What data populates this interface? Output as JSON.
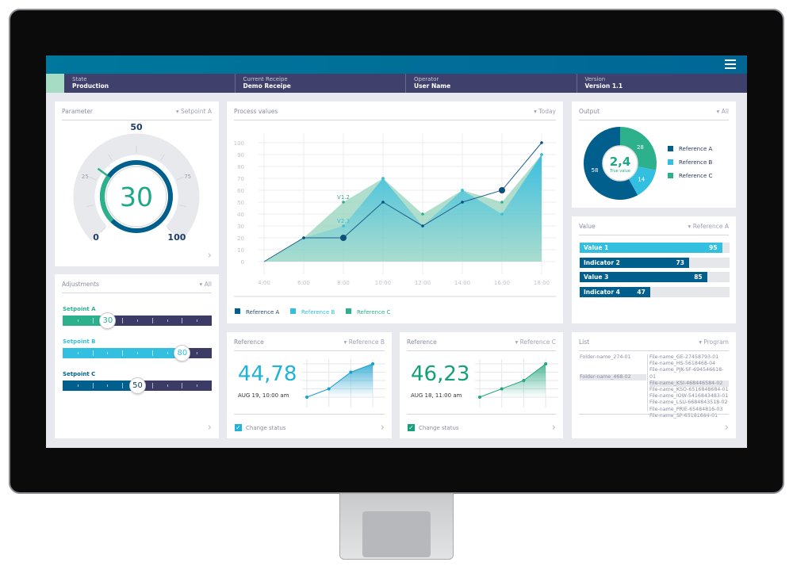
{
  "header": {
    "menu_icon": "hamburger-icon",
    "state": {
      "label": "State",
      "value": "Production"
    },
    "recipe": {
      "label": "Current Receipe",
      "value": "Demo Receipe"
    },
    "operator": {
      "label": "Operator",
      "value": "User Name"
    },
    "version": {
      "label": "Version",
      "value": "Version 1.1"
    }
  },
  "colors": {
    "dark_blue": "#005f8c",
    "light_blue": "#33bfe0",
    "green": "#2db08c",
    "navy": "#3b3b66"
  },
  "parameter": {
    "title": "Parameter",
    "dropdown": "Setpoint A",
    "value": "30",
    "value_num": 30,
    "ticks": [
      "0",
      "25",
      "50",
      "75",
      "100"
    ]
  },
  "adjustments": {
    "title": "Adjustments",
    "dropdown": "All",
    "sliders": [
      {
        "label": "Setpoint A",
        "value": "30",
        "color": "#2db08c"
      },
      {
        "label": "Setpoint B",
        "value": "80",
        "color": "#33bfe0"
      },
      {
        "label": "Setpoint C",
        "value": "50",
        "color": "#005f8c"
      }
    ]
  },
  "process": {
    "title": "Process values",
    "dropdown": "Today"
  },
  "output": {
    "title": "Output",
    "dropdown": "All",
    "center_value": "2,4",
    "center_label": "True value"
  },
  "value_panel": {
    "title": "Value",
    "dropdown": "Reference A",
    "bars": [
      {
        "label": "Value 1",
        "value": "95",
        "color": "#33bfe0"
      },
      {
        "label": "Indicator 2",
        "value": "73",
        "color": "#005f8c"
      },
      {
        "label": "Value 3",
        "value": "85",
        "color": "#005f8c"
      },
      {
        "label": "Indicator 4",
        "value": "47",
        "color": "#005f8c"
      }
    ]
  },
  "refB": {
    "title": "Reference",
    "dropdown": "Reference B",
    "value": "44,78",
    "date": "AUG 19, 10:00 am",
    "checkbox": "Change status",
    "checked": true,
    "levels": [
      0,
      1,
      3,
      4
    ]
  },
  "refC": {
    "title": "Reference",
    "dropdown": "Reference C",
    "value": "46,23",
    "date": "AUG 18, 11:00 am",
    "checkbox": "Change status",
    "checked": true,
    "levels": [
      0,
      1,
      2,
      4
    ]
  },
  "list": {
    "title": "List",
    "dropdown": "Program",
    "folders": [
      "Folder-name_274-01",
      "Folder-name_468-02"
    ],
    "selected_folder": 1,
    "files": [
      "File-name_GE-27458793-01",
      "File-name_HS-5618468-04",
      "File-name_PJK-SF-694546618-01",
      "File-name_KSI-468446584-02",
      "File-name_KSO-6516848684-01",
      "File-name_IOW-5416843483-01",
      "File-name_LSU-6684843518-02",
      "File-name_PRIE-65484816-03",
      "File-name_SP-65181684-01"
    ],
    "selected_file": 3
  },
  "chart_data": [
    {
      "type": "area",
      "title": "Process values",
      "x": [
        "4:00",
        "6:00",
        "8:00",
        "10:00",
        "12:00",
        "14:00",
        "16:00",
        "18:00"
      ],
      "ylim": [
        0,
        100
      ],
      "yticks": [
        0,
        10,
        20,
        30,
        40,
        50,
        60,
        70,
        80,
        90,
        100
      ],
      "grid": true,
      "legend": "bottom-left",
      "series": [
        {
          "name": "Reference A",
          "color": "#005f8c",
          "values": [
            0,
            20,
            20,
            50,
            30,
            50,
            60,
            100
          ]
        },
        {
          "name": "Reference B",
          "color": "#33bfe0",
          "values": [
            0,
            20,
            30,
            70,
            30,
            60,
            40,
            90
          ]
        },
        {
          "name": "Reference C",
          "color": "#2db08c",
          "values": [
            0,
            20,
            50,
            70,
            40,
            60,
            50,
            90
          ]
        }
      ],
      "annotations": [
        {
          "x": "8:00",
          "series": "Reference C",
          "text": "V1.2"
        },
        {
          "x": "8:00",
          "series": "Reference B",
          "text": "V2.3"
        }
      ]
    },
    {
      "type": "pie",
      "title": "Output",
      "categories": [
        "Reference A",
        "Reference B",
        "Reference C"
      ],
      "values": [
        58,
        14,
        28
      ],
      "colors": [
        "#005f8c",
        "#33bfe0",
        "#2db08c"
      ],
      "legend": "right"
    }
  ]
}
